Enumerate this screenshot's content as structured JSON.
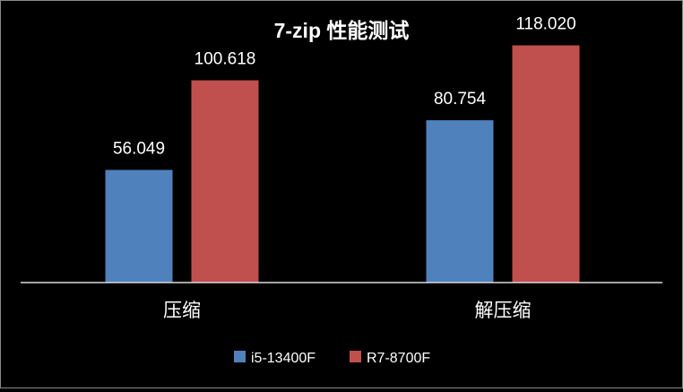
{
  "chart_data": {
    "type": "bar",
    "title": "7-zip 性能测试",
    "categories": [
      "压缩",
      "解压缩"
    ],
    "series": [
      {
        "name": "i5-13400F",
        "values": [
          56.049,
          80.754
        ],
        "labels": [
          "56.049",
          "80.754"
        ],
        "color": "#4f81bd"
      },
      {
        "name": "R7-8700F",
        "values": [
          100.618,
          118.02
        ],
        "labels": [
          "100.618",
          "118.020"
        ],
        "color": "#c0504d"
      }
    ],
    "ylim": [
      0,
      133
    ],
    "grid": false,
    "legend_position": "bottom",
    "background": "#000000",
    "text_color": "#ffffff"
  }
}
